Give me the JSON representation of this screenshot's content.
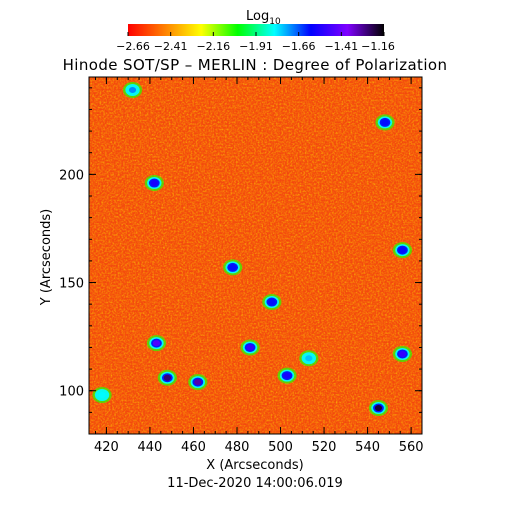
{
  "colorbar": {
    "label": "Log",
    "label_subscript": "10",
    "ticks": [
      "-2.66",
      "-2.41",
      "-2.16",
      "-1.91",
      "-1.66",
      "-1.41",
      "-1.16"
    ],
    "range": [
      -2.66,
      -1.16
    ],
    "colormap_stops": [
      "#ff0000",
      "#ff7f00",
      "#ffff00",
      "#00ff00",
      "#00ffff",
      "#0000ff",
      "#7f00ff",
      "#000000"
    ]
  },
  "chart_data": {
    "type": "heatmap",
    "title": "Hinode SOT/SP – MERLIN : Degree of Polarization",
    "xlabel": "X (Arcseconds)",
    "ylabel": "Y (Arcseconds)",
    "xlim": [
      412,
      565
    ],
    "ylim": [
      80,
      245
    ],
    "xticks": [
      420,
      440,
      460,
      480,
      500,
      520,
      540,
      560
    ],
    "yticks": [
      100,
      150,
      200
    ],
    "value_scale": "log10",
    "value_range": [
      -2.66,
      -1.16
    ],
    "background_level": -2.55,
    "high_polarization_patches": [
      {
        "x": 448,
        "y": 106,
        "level": -1.25
      },
      {
        "x": 462,
        "y": 104,
        "level": -1.3
      },
      {
        "x": 443,
        "y": 122,
        "level": -1.45
      },
      {
        "x": 545,
        "y": 92,
        "level": -1.2
      },
      {
        "x": 503,
        "y": 107,
        "level": -1.55
      },
      {
        "x": 478,
        "y": 157,
        "level": -1.6
      },
      {
        "x": 486,
        "y": 120,
        "level": -1.5
      },
      {
        "x": 442,
        "y": 196,
        "level": -1.55
      },
      {
        "x": 432,
        "y": 239,
        "level": -1.7
      },
      {
        "x": 556,
        "y": 117,
        "level": -1.5
      },
      {
        "x": 556,
        "y": 165,
        "level": -1.6
      },
      {
        "x": 548,
        "y": 224,
        "level": -1.6
      },
      {
        "x": 513,
        "y": 115,
        "level": -1.75
      },
      {
        "x": 496,
        "y": 141,
        "level": -1.6
      },
      {
        "x": 418,
        "y": 98,
        "level": -1.8
      }
    ]
  },
  "timestamp": "11-Dec-2020 14:00:06.019"
}
